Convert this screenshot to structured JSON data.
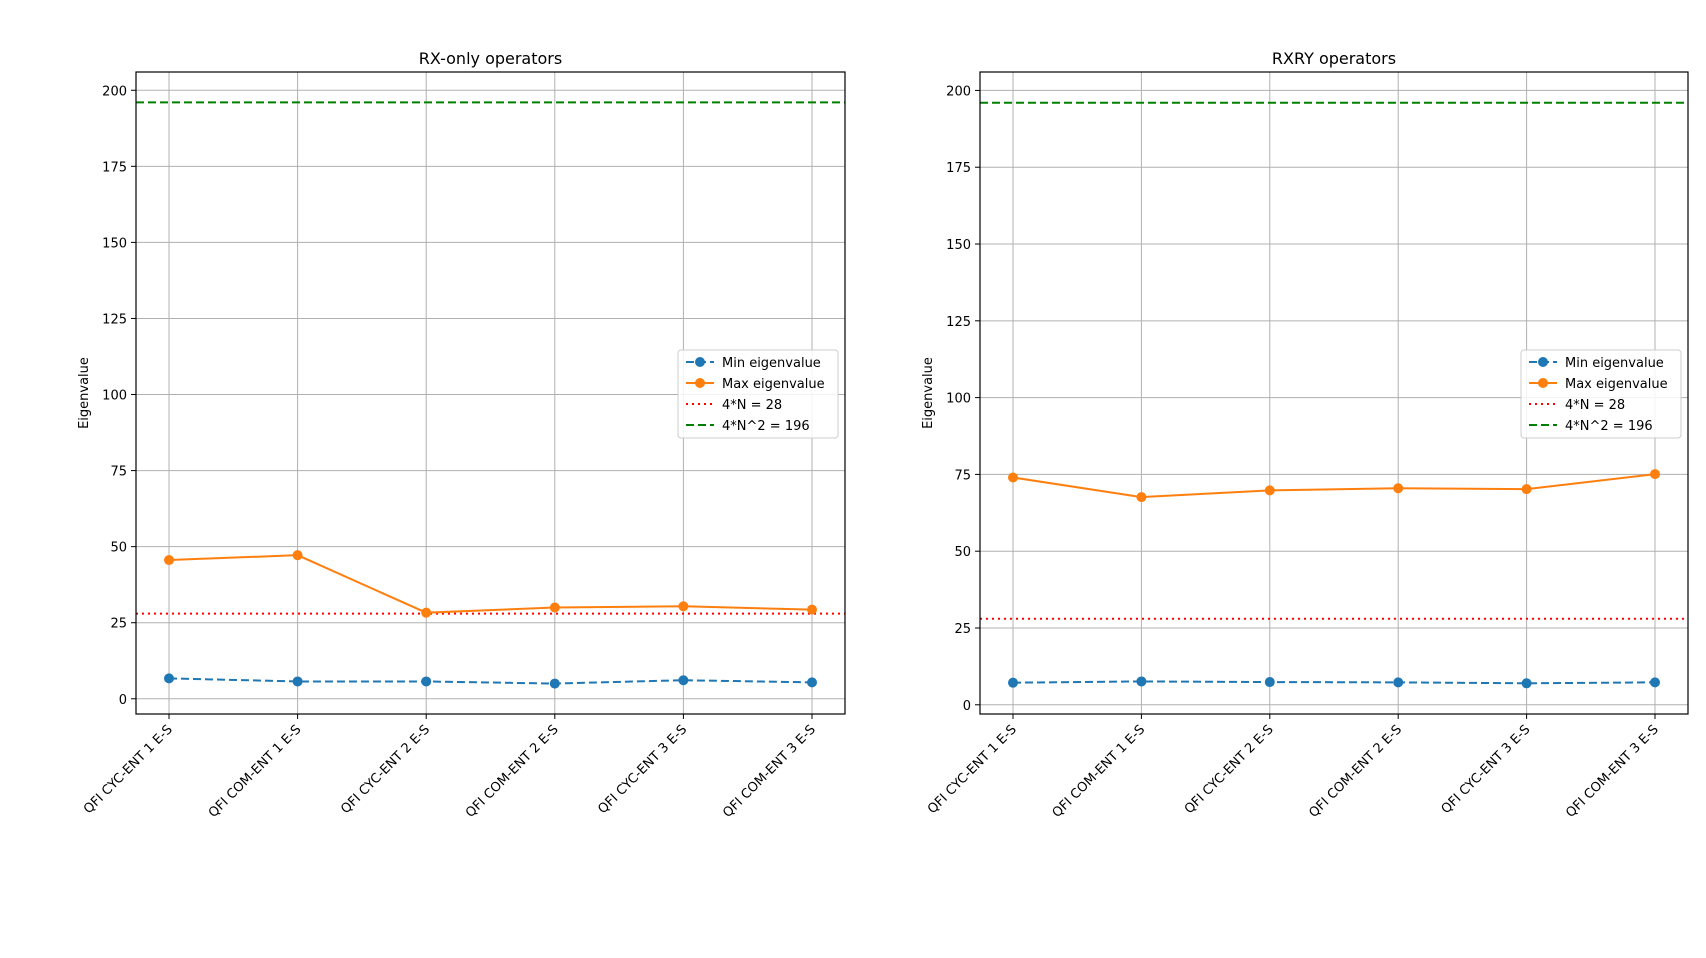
{
  "chart_data": [
    {
      "type": "line",
      "title": "RX-only operators",
      "xlabel": "",
      "ylabel": "Eigenvalue",
      "ylim": [
        -5,
        206
      ],
      "yticks": [
        0,
        25,
        50,
        75,
        100,
        125,
        150,
        175,
        200
      ],
      "grid": true,
      "legend_position": "center-right",
      "categories": [
        "QFI CYC-ENT 1 E-S",
        "QFI COM-ENT 1 E-S",
        "QFI CYC-ENT 2 E-S",
        "QFI COM-ENT 2 E-S",
        "QFI CYC-ENT 3 E-S",
        "QFI COM-ENT 3 E-S"
      ],
      "series": [
        {
          "name": "Min eigenvalue",
          "values": [
            6.7,
            5.7,
            5.7,
            5.0,
            6.1,
            5.4
          ],
          "color": "#1f77b4",
          "style": "dashed",
          "marker": "circle"
        },
        {
          "name": "Max eigenvalue",
          "values": [
            45.6,
            47.2,
            28.3,
            30.0,
            30.4,
            29.3
          ],
          "color": "#ff7f0e",
          "style": "solid",
          "marker": "circle"
        }
      ],
      "reference_lines": [
        {
          "name": "4*N = 28",
          "value": 28,
          "color": "#ff0000",
          "style": "dotted"
        },
        {
          "name": "4*N^2 = 196",
          "value": 196,
          "color": "#008000",
          "style": "dashed"
        }
      ]
    },
    {
      "type": "line",
      "title": "RXRY operators",
      "xlabel": "",
      "ylabel": "Eigenvalue",
      "ylim": [
        -3,
        206
      ],
      "yticks": [
        0,
        25,
        50,
        75,
        100,
        125,
        150,
        175,
        200
      ],
      "grid": true,
      "legend_position": "center-right",
      "categories": [
        "QFI CYC-ENT 1 E-S",
        "QFI COM-ENT 1 E-S",
        "QFI CYC-ENT 2 E-S",
        "QFI COM-ENT 2 E-S",
        "QFI CYC-ENT 3 E-S",
        "QFI COM-ENT 3 E-S"
      ],
      "series": [
        {
          "name": "Min eigenvalue",
          "values": [
            7.2,
            7.6,
            7.4,
            7.3,
            7.0,
            7.3
          ],
          "color": "#1f77b4",
          "style": "dashed",
          "marker": "circle"
        },
        {
          "name": "Max eigenvalue",
          "values": [
            74.0,
            67.6,
            69.8,
            70.5,
            70.2,
            75.1
          ],
          "color": "#ff7f0e",
          "style": "solid",
          "marker": "circle"
        }
      ],
      "reference_lines": [
        {
          "name": "4*N = 28",
          "value": 28,
          "color": "#ff0000",
          "style": "dotted"
        },
        {
          "name": "4*N^2 = 196",
          "value": 196,
          "color": "#008000",
          "style": "dashed"
        }
      ]
    }
  ]
}
